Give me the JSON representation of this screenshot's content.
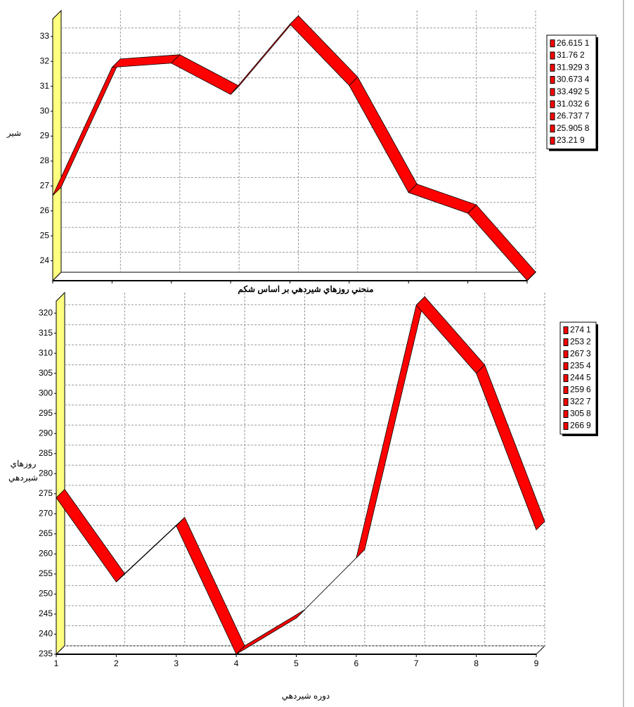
{
  "chart_data": [
    {
      "type": "line",
      "y_label": "شير",
      "categories": [
        "1",
        "2",
        "3",
        "4",
        "5",
        "6",
        "7",
        "8",
        "9"
      ],
      "values": [
        26.615,
        31.76,
        31.929,
        30.673,
        33.492,
        31.032,
        26.737,
        25.905,
        23.21
      ],
      "color": "#ff0000",
      "ylim": [
        23.2,
        33.7
      ],
      "yticks": [
        24,
        25,
        26,
        27,
        28,
        29,
        30,
        31,
        32,
        33
      ],
      "grid": true,
      "legend": "right",
      "show_xticks": false
    },
    {
      "type": "line",
      "title": "منحني  روزهاي شيردهي بر اساس شكم",
      "y_label": [
        "روزهاي",
        "شيردهي"
      ],
      "x_label": "دوره شيردهي",
      "categories": [
        "1",
        "2",
        "3",
        "4",
        "5",
        "6",
        "7",
        "8",
        "9"
      ],
      "values": [
        274,
        253,
        267,
        235,
        244,
        259,
        322,
        305,
        266
      ],
      "color": "#ff0000",
      "ylim": [
        235,
        323
      ],
      "yticks": [
        235,
        240,
        245,
        250,
        255,
        260,
        265,
        270,
        275,
        280,
        285,
        290,
        295,
        300,
        305,
        310,
        315,
        320
      ],
      "grid": true,
      "legend": "right",
      "show_xticks": true
    }
  ]
}
